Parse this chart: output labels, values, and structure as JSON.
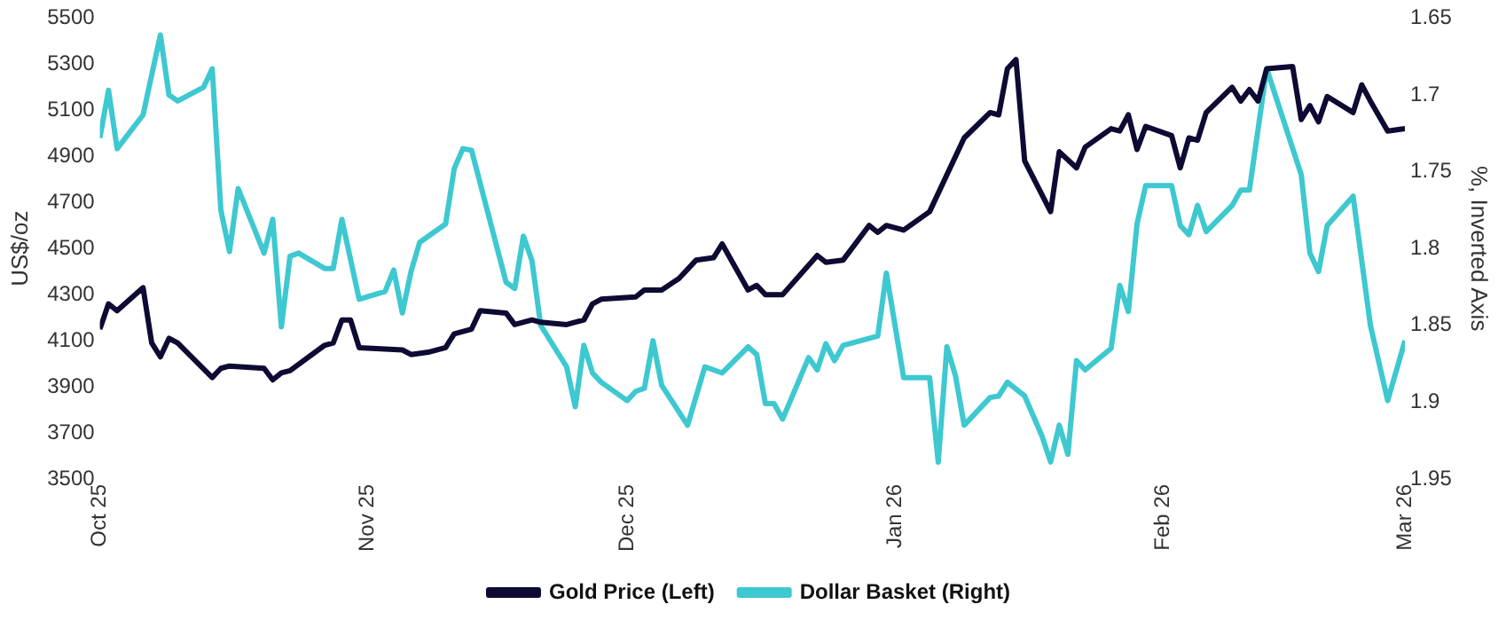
{
  "chart_data": {
    "type": "line",
    "ylabel": "US$/oz",
    "y2label": "%, Inverted Axis",
    "xlim": [
      "2025-10-01",
      "2026-03-01"
    ],
    "xticks": [
      {
        "value": "2025-10-01",
        "label": "Oct 25"
      },
      {
        "value": "2025-11-01",
        "label": "Nov 25"
      },
      {
        "value": "2025-12-01",
        "label": "Dec 25"
      },
      {
        "value": "2026-01-01",
        "label": "Jan 26"
      },
      {
        "value": "2026-02-01",
        "label": "Feb 26"
      },
      {
        "value": "2026-03-01",
        "label": "Mar 26"
      }
    ],
    "ylim": [
      3500,
      5500
    ],
    "yticks": [
      3500,
      3700,
      3900,
      4100,
      4300,
      4500,
      4700,
      4900,
      5100,
      5300,
      5500
    ],
    "y2lim": [
      1.95,
      1.65
    ],
    "y2ticks": [
      1.95,
      1.9,
      1.85,
      1.8,
      1.75,
      1.7,
      1.65
    ],
    "grid": false,
    "legend": "bottom",
    "marker": "none",
    "line_style": "solid",
    "series": [
      {
        "name": "Gold Price (Left)",
        "color": "#0d0b33",
        "x": [
          "2025-10-01",
          "2025-10-02",
          "2025-10-03",
          "2025-10-06",
          "2025-10-07",
          "2025-10-08",
          "2025-10-09",
          "2025-10-10",
          "2025-10-14",
          "2025-10-15",
          "2025-10-16",
          "2025-10-20",
          "2025-10-21",
          "2025-10-22",
          "2025-10-23",
          "2025-10-27",
          "2025-10-28",
          "2025-10-29",
          "2025-10-30",
          "2025-10-31",
          "2025-11-05",
          "2025-11-06",
          "2025-11-08",
          "2025-11-10",
          "2025-11-11",
          "2025-11-13",
          "2025-11-14",
          "2025-11-17",
          "2025-11-18",
          "2025-11-20",
          "2025-11-21",
          "2025-11-24",
          "2025-11-26",
          "2025-11-27",
          "2025-11-28",
          "2025-12-02",
          "2025-12-03",
          "2025-12-05",
          "2025-12-07",
          "2025-12-09",
          "2025-12-11",
          "2025-12-12",
          "2025-12-15",
          "2025-12-16",
          "2025-12-17",
          "2025-12-19",
          "2025-12-23",
          "2025-12-24",
          "2025-12-26",
          "2025-12-29",
          "2025-12-30",
          "2025-12-31",
          "2026-01-02",
          "2026-01-05",
          "2026-01-09",
          "2026-01-12",
          "2026-01-13",
          "2026-01-14",
          "2026-01-15",
          "2026-01-16",
          "2026-01-19",
          "2026-01-20",
          "2026-01-22",
          "2026-01-23",
          "2026-01-26",
          "2026-01-27",
          "2026-01-28",
          "2026-01-29",
          "2026-01-30",
          "2026-02-02",
          "2026-02-03",
          "2026-02-04",
          "2026-02-05",
          "2026-02-06",
          "2026-02-09",
          "2026-02-10",
          "2026-02-11",
          "2026-02-12",
          "2026-02-13",
          "2026-02-16",
          "2026-02-17",
          "2026-02-18",
          "2026-02-19",
          "2026-02-20",
          "2026-02-23",
          "2026-02-24",
          "2026-02-25",
          "2026-02-27",
          "2026-03-01"
        ],
        "values": [
          4150,
          4260,
          4230,
          4330,
          4090,
          4030,
          4110,
          4090,
          3940,
          3980,
          3990,
          3980,
          3930,
          3960,
          3970,
          4080,
          4090,
          4190,
          4190,
          4070,
          4060,
          4040,
          4050,
          4070,
          4130,
          4150,
          4230,
          4220,
          4170,
          4190,
          4180,
          4170,
          4190,
          4260,
          4280,
          4290,
          4320,
          4320,
          4370,
          4450,
          4460,
          4520,
          4320,
          4340,
          4300,
          4300,
          4470,
          4440,
          4450,
          4600,
          4570,
          4600,
          4580,
          4660,
          4980,
          5090,
          5080,
          5280,
          5320,
          4880,
          4660,
          4920,
          4850,
          4940,
          5020,
          5010,
          5080,
          4930,
          5030,
          4990,
          4850,
          4980,
          4970,
          5090,
          5200,
          5140,
          5190,
          5140,
          5280,
          5290,
          5060,
          5120,
          5050,
          5160,
          5090,
          5210,
          5140,
          5010,
          5020
        ]
      },
      {
        "name": "Dollar Basket (Right)",
        "color": "#3ec8d0",
        "axis": "y2",
        "x": [
          "2025-10-01",
          "2025-10-02",
          "2025-10-03",
          "2025-10-06",
          "2025-10-08",
          "2025-10-09",
          "2025-10-10",
          "2025-10-13",
          "2025-10-14",
          "2025-10-15",
          "2025-10-16",
          "2025-10-17",
          "2025-10-20",
          "2025-10-21",
          "2025-10-22",
          "2025-10-23",
          "2025-10-24",
          "2025-10-27",
          "2025-10-28",
          "2025-10-29",
          "2025-10-31",
          "2025-11-03",
          "2025-11-04",
          "2025-11-05",
          "2025-11-06",
          "2025-11-07",
          "2025-11-10",
          "2025-11-11",
          "2025-11-12",
          "2025-11-13",
          "2025-11-17",
          "2025-11-18",
          "2025-11-19",
          "2025-11-20",
          "2025-11-21",
          "2025-11-24",
          "2025-11-25",
          "2025-11-26",
          "2025-11-27",
          "2025-11-28",
          "2025-12-01",
          "2025-12-02",
          "2025-12-03",
          "2025-12-04",
          "2025-12-05",
          "2025-12-08",
          "2025-12-10",
          "2025-12-12",
          "2025-12-15",
          "2025-12-16",
          "2025-12-17",
          "2025-12-18",
          "2025-12-19",
          "2025-12-22",
          "2025-12-23",
          "2025-12-24",
          "2025-12-25",
          "2025-12-26",
          "2025-12-30",
          "2025-12-31",
          "2026-01-02",
          "2026-01-05",
          "2026-01-06",
          "2026-01-07",
          "2026-01-08",
          "2026-01-09",
          "2026-01-12",
          "2026-01-13",
          "2026-01-14",
          "2026-01-16",
          "2026-01-18",
          "2026-01-19",
          "2026-01-20",
          "2026-01-21",
          "2026-01-22",
          "2026-01-23",
          "2026-01-26",
          "2026-01-27",
          "2026-01-28",
          "2026-01-29",
          "2026-01-30",
          "2026-02-02",
          "2026-02-03",
          "2026-02-04",
          "2026-02-05",
          "2026-02-06",
          "2026-02-09",
          "2026-02-10",
          "2026-02-11",
          "2026-02-13",
          "2026-02-17",
          "2026-02-18",
          "2026-02-19",
          "2026-02-20",
          "2026-02-23",
          "2026-02-25",
          "2026-02-27",
          "2026-03-01"
        ],
        "values": [
          1.728,
          1.697,
          1.735,
          1.713,
          1.661,
          1.7,
          1.704,
          1.695,
          1.683,
          1.775,
          1.802,
          1.761,
          1.803,
          1.781,
          1.851,
          1.805,
          1.803,
          1.813,
          1.813,
          1.781,
          1.833,
          1.828,
          1.814,
          1.842,
          1.815,
          1.796,
          1.784,
          1.748,
          1.735,
          1.736,
          1.822,
          1.826,
          1.792,
          1.808,
          1.85,
          1.877,
          1.903,
          1.863,
          1.881,
          1.887,
          1.899,
          1.893,
          1.891,
          1.86,
          1.889,
          1.915,
          1.877,
          1.881,
          1.864,
          1.869,
          1.901,
          1.901,
          1.911,
          1.871,
          1.879,
          1.862,
          1.873,
          1.863,
          1.857,
          1.816,
          1.884,
          1.884,
          1.939,
          1.864,
          1.883,
          1.915,
          1.897,
          1.896,
          1.887,
          1.896,
          1.922,
          1.939,
          1.915,
          1.934,
          1.873,
          1.879,
          1.865,
          1.824,
          1.841,
          1.784,
          1.759,
          1.759,
          1.785,
          1.791,
          1.772,
          1.789,
          1.772,
          1.762,
          1.762,
          1.683,
          1.752,
          1.803,
          1.815,
          1.785,
          1.766,
          1.85,
          1.899,
          1.86
        ]
      }
    ]
  }
}
